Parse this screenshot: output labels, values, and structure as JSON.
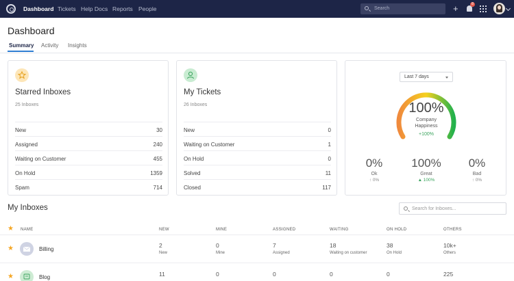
{
  "nav": {
    "links": [
      "Dashboard",
      "Tickets",
      "Help Docs",
      "Reports",
      "People"
    ],
    "search_placeholder": "Search",
    "notification_count": "8"
  },
  "page": {
    "title": "Dashboard",
    "tabs": [
      "Summary",
      "Activity",
      "Insights"
    ]
  },
  "starred": {
    "title": "Starred Inboxes",
    "subtitle": "25 Inboxes",
    "rows": [
      {
        "label": "New",
        "value": "30"
      },
      {
        "label": "Assigned",
        "value": "240"
      },
      {
        "label": "Waiting on Customer",
        "value": "455"
      },
      {
        "label": "On Hold",
        "value": "1359"
      },
      {
        "label": "Spam",
        "value": "714"
      }
    ]
  },
  "tickets": {
    "title": "My Tickets",
    "subtitle": "26 Inboxes",
    "rows": [
      {
        "label": "New",
        "value": "0"
      },
      {
        "label": "Waiting on Customer",
        "value": "1"
      },
      {
        "label": "On Hold",
        "value": "0"
      },
      {
        "label": "Solved",
        "value": "11"
      },
      {
        "label": "Closed",
        "value": "117"
      }
    ]
  },
  "happiness": {
    "range": "Last 7 days",
    "value": "100%",
    "label_line1": "Company",
    "label_line2": "Happiness",
    "delta": "+100%",
    "level": 1.0,
    "stats": [
      {
        "value": "0%",
        "label": "Ok",
        "delta": "↑ 0%"
      },
      {
        "value": "100%",
        "label": "Great",
        "delta": "▲ 100%"
      },
      {
        "value": "0%",
        "label": "Bad",
        "delta": "↑ 0%"
      }
    ],
    "colors": {
      "low": "#f08a3c",
      "mid": "#f5d11e",
      "high": "#22b14c"
    }
  },
  "inboxes": {
    "title": "My Inboxes",
    "search_placeholder": "Search for Inboxes...",
    "columns": [
      "NAME",
      "NEW",
      "MINE",
      "ASSIGNED",
      "WAITING",
      "ON HOLD",
      "OTHERS"
    ],
    "rows": [
      {
        "name": "Billing",
        "avatar_color": "#cfd3e3",
        "cells": [
          {
            "value": "2",
            "label": "New"
          },
          {
            "value": "0",
            "label": "Mine"
          },
          {
            "value": "7",
            "label": "Assigned"
          },
          {
            "value": "18",
            "label": "Waiting on customer"
          },
          {
            "value": "38",
            "label": "On Hold"
          },
          {
            "value": "10k+",
            "label": "Others"
          }
        ]
      },
      {
        "name": "Blog",
        "avatar_color": "#cdebd3",
        "cells": [
          {
            "value": "11",
            "label": ""
          },
          {
            "value": "0",
            "label": ""
          },
          {
            "value": "0",
            "label": ""
          },
          {
            "value": "0",
            "label": ""
          },
          {
            "value": "0",
            "label": ""
          },
          {
            "value": "225",
            "label": ""
          }
        ]
      }
    ]
  }
}
